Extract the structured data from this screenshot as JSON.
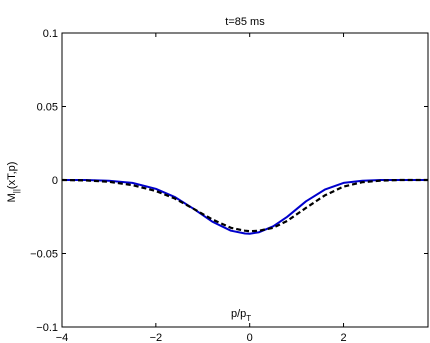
{
  "chart_data": {
    "type": "line",
    "title": "t=85 ms",
    "ylabel_main": "M",
    "ylabel_sub": "||",
    "ylabel_rest": "(xT,p)",
    "xlabel_main": "p/p",
    "xlabel_sub": "T",
    "xlim": [
      -4,
      3.8
    ],
    "ylim": [
      -0.1,
      0.1
    ],
    "xticks": [
      -4,
      -2,
      0,
      2
    ],
    "xtick_labels": [
      "−4",
      "−2",
      "0",
      "2"
    ],
    "yticks": [
      -0.1,
      -0.05,
      0,
      0.05,
      0.1
    ],
    "ytick_labels": [
      "−0.1",
      "−0.05",
      "0",
      "0.05",
      "0.1"
    ],
    "grid": false,
    "series": [
      {
        "style": "solid",
        "color": "#0000cc",
        "x": [
          -4.0,
          -3.5,
          -3.0,
          -2.5,
          -2.0,
          -1.6,
          -1.2,
          -0.8,
          -0.4,
          -0.1,
          0.0,
          0.2,
          0.5,
          0.8,
          1.2,
          1.6,
          2.0,
          2.4,
          2.8,
          3.2,
          3.8
        ],
        "y": [
          0.0,
          0.0,
          -0.0005,
          -0.002,
          -0.006,
          -0.0115,
          -0.0195,
          -0.0283,
          -0.0345,
          -0.0364,
          -0.0365,
          -0.0355,
          -0.0315,
          -0.025,
          -0.0145,
          -0.0065,
          -0.002,
          -0.0005,
          0.0,
          0.0,
          0.0
        ]
      },
      {
        "style": "dashed",
        "color": "#000000",
        "x": [
          -4.0,
          -3.5,
          -3.0,
          -2.5,
          -2.0,
          -1.6,
          -1.2,
          -0.8,
          -0.4,
          -0.1,
          0.0,
          0.2,
          0.5,
          0.8,
          1.2,
          1.6,
          2.0,
          2.4,
          2.8,
          3.2,
          3.8
        ],
        "y": [
          0.0,
          -0.0003,
          -0.0012,
          -0.0035,
          -0.0075,
          -0.0125,
          -0.0195,
          -0.0268,
          -0.0325,
          -0.0345,
          -0.0348,
          -0.0345,
          -0.0325,
          -0.0278,
          -0.019,
          -0.0105,
          -0.0045,
          -0.0015,
          -0.0004,
          0.0,
          0.0
        ]
      }
    ]
  }
}
